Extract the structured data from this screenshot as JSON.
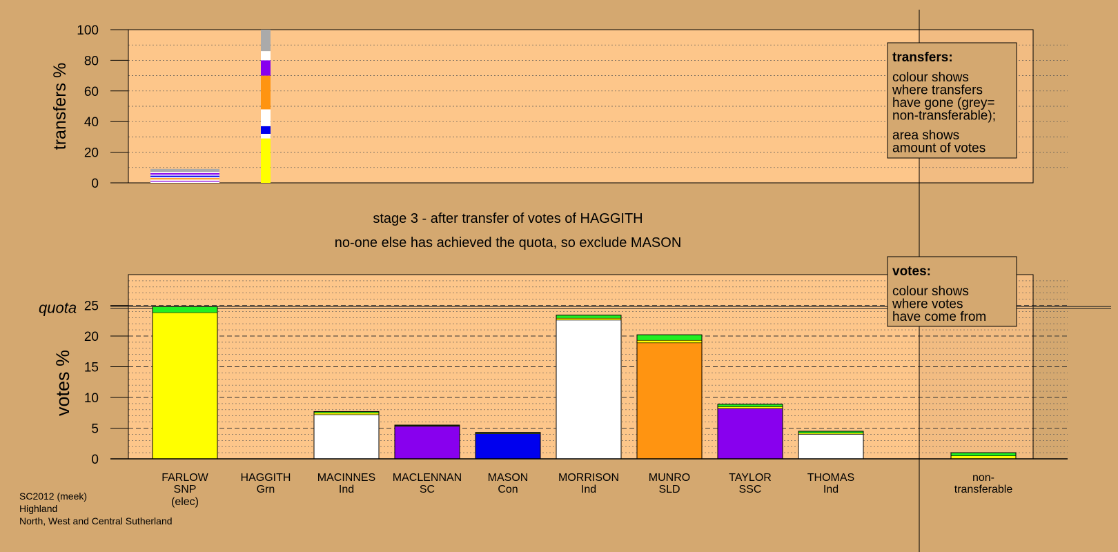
{
  "chart_data": {
    "type": "bar",
    "stage_title": "stage 3 - after transfer of votes of HAGGITH",
    "stage_subtitle": "no-one else has achieved the quota, so exclude MASON",
    "colors": {
      "background": "#d4a870",
      "plot": "#fdc68a",
      "yellow": "#ffff00",
      "green": "#22ee22",
      "white": "#ffffff",
      "purple": "#8800ee",
      "blue": "#0000ee",
      "orange": "#ff9411",
      "grey": "#aaaaaa"
    },
    "transfers": {
      "ylabel": "transfers %",
      "ylim": [
        0,
        100
      ],
      "ticks": [
        "0",
        "20",
        "40",
        "60",
        "80",
        "100"
      ],
      "bars": [
        {
          "candidate": "FARLOW",
          "segments": [
            {
              "color": "white",
              "value": 0.8
            },
            {
              "color": "purple",
              "value": 0.6
            },
            {
              "color": "white",
              "value": 0.8
            },
            {
              "color": "orange",
              "value": 0.9
            },
            {
              "color": "white",
              "value": 0.7
            },
            {
              "color": "blue",
              "value": 0.9
            },
            {
              "color": "white",
              "value": 0.7
            },
            {
              "color": "purple",
              "value": 0.9
            },
            {
              "color": "white",
              "value": 0.8
            },
            {
              "color": "grey",
              "value": 2.0
            }
          ]
        },
        {
          "candidate": "HAGGITH",
          "segments": [
            {
              "color": "yellow",
              "value": 29
            },
            {
              "color": "white",
              "value": 3
            },
            {
              "color": "blue",
              "value": 5
            },
            {
              "color": "white",
              "value": 11
            },
            {
              "color": "orange",
              "value": 22
            },
            {
              "color": "purple",
              "value": 10
            },
            {
              "color": "white",
              "value": 6
            },
            {
              "color": "grey",
              "value": 14
            }
          ]
        }
      ]
    },
    "votes": {
      "ylabel": "votes %",
      "ylim": [
        0,
        30
      ],
      "ticks": [
        "0",
        "5",
        "10",
        "15",
        "20",
        "25"
      ],
      "quota_label": "quota",
      "quota": 24.8,
      "categories": [
        {
          "line1": "FARLOW",
          "line2": "SNP",
          "line3": "(elec)",
          "segments": [
            {
              "color": "yellow",
              "value": 23.8
            },
            {
              "color": "green",
              "value": 1.0
            }
          ]
        },
        {
          "line1": "HAGGITH",
          "line2": "Grn",
          "line3": "",
          "segments": []
        },
        {
          "line1": "MACINNES",
          "line2": "Ind",
          "line3": "",
          "segments": [
            {
              "color": "white",
              "value": 7.2
            },
            {
              "color": "yellow",
              "value": 0.3
            },
            {
              "color": "green",
              "value": 0.2
            }
          ]
        },
        {
          "line1": "MACLENNAN",
          "line2": "SC",
          "line3": "",
          "segments": [
            {
              "color": "purple",
              "value": 5.3
            },
            {
              "color": "yellow",
              "value": 0.1
            },
            {
              "color": "green",
              "value": 0.1
            }
          ]
        },
        {
          "line1": "MASON",
          "line2": "Con",
          "line3": "",
          "segments": [
            {
              "color": "blue",
              "value": 4.1
            },
            {
              "color": "yellow",
              "value": 0.1
            },
            {
              "color": "green",
              "value": 0.1
            }
          ]
        },
        {
          "line1": "MORRISON",
          "line2": "Ind",
          "line3": "",
          "segments": [
            {
              "color": "white",
              "value": 22.6
            },
            {
              "color": "yellow",
              "value": 0.3
            },
            {
              "color": "green",
              "value": 0.5
            }
          ]
        },
        {
          "line1": "MUNRO",
          "line2": "SLD",
          "line3": "",
          "segments": [
            {
              "color": "orange",
              "value": 18.9
            },
            {
              "color": "yellow",
              "value": 0.4
            },
            {
              "color": "green",
              "value": 0.9
            }
          ]
        },
        {
          "line1": "TAYLOR",
          "line2": "SSC",
          "line3": "",
          "segments": [
            {
              "color": "purple",
              "value": 8.2
            },
            {
              "color": "yellow",
              "value": 0.3
            },
            {
              "color": "green",
              "value": 0.4
            }
          ]
        },
        {
          "line1": "THOMAS",
          "line2": "Ind",
          "line3": "",
          "segments": [
            {
              "color": "white",
              "value": 4.0
            },
            {
              "color": "yellow",
              "value": 0.2
            },
            {
              "color": "green",
              "value": 0.3
            }
          ]
        },
        {
          "line1": "non-",
          "line2": "transferable",
          "line3": "",
          "segments": [
            {
              "color": "yellow",
              "value": 0.5
            },
            {
              "color": "green",
              "value": 0.5
            }
          ]
        }
      ]
    },
    "legend_transfers": {
      "title": "transfers:",
      "lines": [
        "colour shows",
        "where transfers",
        "have gone (grey=",
        "non-transferable);"
      ],
      "lines2": [
        "area shows",
        "amount of votes"
      ]
    },
    "legend_votes": {
      "title": "votes:",
      "lines": [
        "colour shows",
        "where votes",
        "have come from"
      ]
    }
  },
  "footer": {
    "line1": "SC2012 (meek)",
    "line2": "Highland",
    "line3": "North, West and Central Sutherland"
  }
}
